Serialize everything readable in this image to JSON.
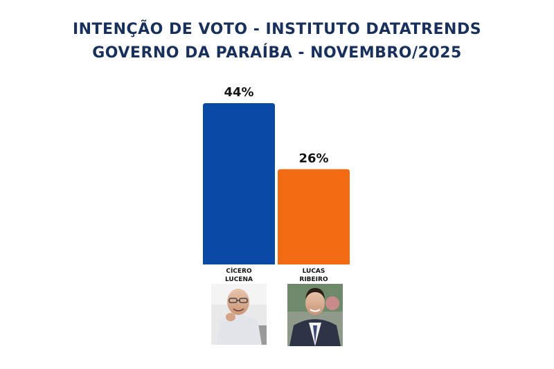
{
  "chart_data": {
    "type": "bar",
    "title": "INTENÇÃO DE VOTO - INSTITUTO DATATRENDS",
    "subtitle": "GOVERNO DA PARAÍBA - NOVEMBRO/2025",
    "categories": [
      {
        "line1": "CÍCERO",
        "line2": "LUCENA"
      },
      {
        "line1": "LUCAS",
        "line2": "RIBEIRO"
      }
    ],
    "values": [
      44,
      26
    ],
    "value_labels": [
      "44%",
      "26%"
    ],
    "colors": [
      "#0a4aa6",
      "#f26a12"
    ],
    "ylim": [
      0,
      44
    ],
    "grid": false,
    "legend": "none",
    "photos": [
      "candidate-photo-cicero-lucena",
      "candidate-photo-lucas-ribeiro"
    ]
  }
}
